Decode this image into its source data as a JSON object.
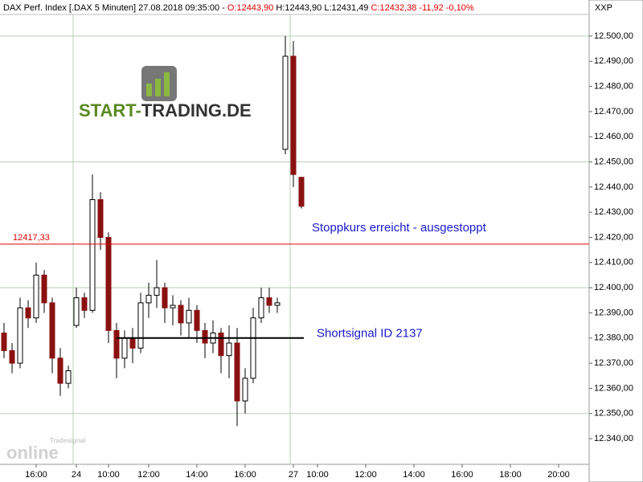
{
  "chart_data": {
    "type": "candlestick",
    "header": {
      "instrument": "DAX Perf. Index [.DAX  5 Minuten] 27.08.2018 09:35:00 -",
      "open": "O:12443,90",
      "high": "H:12443,90",
      "low": "L:12431,49",
      "close": "C:12432,38 -11,92 -0,10%"
    },
    "axis_title": "XXP",
    "logo": {
      "part1": "START-",
      "part2": "TRADING.DE"
    },
    "watermark": {
      "small": "Tradesignal",
      "big": "online"
    },
    "categories": [
      null,
      null,
      null,
      null,
      "16:00",
      null,
      null,
      null,
      null,
      "24",
      null,
      null,
      null,
      "10:00",
      null,
      null,
      null,
      null,
      "12:00",
      null,
      null,
      null,
      null,
      null,
      "14:00",
      null,
      null,
      null,
      null,
      null,
      "16:00",
      null,
      null,
      null,
      null,
      null,
      "27",
      null,
      null,
      "10:00",
      null,
      null,
      null,
      null,
      null,
      "12:00",
      null,
      null,
      null,
      null,
      null,
      "14:00",
      null,
      null,
      null,
      null,
      null,
      "16:00",
      null,
      null,
      null,
      null,
      null,
      "18:00",
      null,
      null,
      null,
      null,
      null,
      "20:00",
      null,
      null,
      null
    ],
    "open": [
      12382,
      12375,
      12370,
      12392,
      12388,
      12405,
      12394,
      12372,
      12362,
      12385,
      12396,
      12391,
      12435,
      12420,
      12383,
      12372,
      12380,
      12376,
      12394,
      12397,
      12400,
      12392,
      12393,
      12386,
      12391,
      12383,
      12378,
      12382,
      12373,
      12378,
      12355,
      12364,
      12388,
      12396,
      12393,
      12455,
      12492,
      12443.9,
      null,
      null,
      null,
      null,
      null,
      null,
      null,
      null,
      null,
      null,
      null,
      null,
      null,
      null,
      null,
      null,
      null,
      null,
      null,
      null,
      null,
      null,
      null,
      null,
      null,
      null,
      null,
      null,
      null,
      null,
      null,
      null,
      null,
      null,
      null
    ],
    "high": [
      12386,
      12378,
      12396,
      12395,
      12410,
      12407,
      12396,
      12376,
      12369,
      12400,
      12398,
      12445,
      12438,
      12422,
      12386,
      12383,
      12384,
      12398,
      12402,
      12411,
      12402,
      12397,
      12395,
      12396,
      12393,
      12386,
      12387,
      12384,
      12385,
      12384,
      12368,
      12392,
      12400,
      12400,
      12396,
      12500,
      12498,
      12443.9,
      null,
      null,
      null,
      null,
      null,
      null,
      null,
      null,
      null,
      null,
      null,
      null,
      null,
      null,
      null,
      null,
      null,
      null,
      null,
      null,
      null,
      null,
      null,
      null,
      null,
      null,
      null,
      null,
      null,
      null,
      null,
      null,
      null,
      null,
      null
    ],
    "low": [
      12372,
      12366,
      12368,
      12384,
      12386,
      12390,
      12366,
      12357,
      12360,
      12384,
      12388,
      12390,
      12415,
      12378,
      12364,
      12368,
      12370,
      12374,
      12388,
      12392,
      12386,
      12385,
      12381,
      12380,
      12378,
      12372,
      12374,
      12366,
      12364,
      12345,
      12350,
      12362,
      12386,
      12390,
      12390,
      12453,
      12440,
      12431.49,
      null,
      null,
      null,
      null,
      null,
      null,
      null,
      null,
      null,
      null,
      null,
      null,
      null,
      null,
      null,
      null,
      null,
      null,
      null,
      null,
      null,
      null,
      null,
      null,
      null,
      null,
      null,
      null,
      null,
      null,
      null,
      null,
      null,
      null,
      null
    ],
    "close": [
      12375,
      12370,
      12392,
      12388,
      12405,
      12394,
      12372,
      12362,
      12367,
      12396,
      12391,
      12435,
      12420,
      12383,
      12372,
      12380,
      12376,
      12394,
      12397,
      12400,
      12392,
      12393,
      12386,
      12391,
      12383,
      12378,
      12382,
      12373,
      12378,
      12355,
      12364,
      12388,
      12396,
      12393,
      12394,
      12492,
      12445,
      12432.38,
      null,
      null,
      null,
      null,
      null,
      null,
      null,
      null,
      null,
      null,
      null,
      null,
      null,
      null,
      null,
      null,
      null,
      null,
      null,
      null,
      null,
      null,
      null,
      null,
      null,
      null,
      null,
      null,
      null,
      null,
      null,
      null,
      null,
      null,
      null
    ],
    "up_color": "#ffffff",
    "down_color": "#8b1010",
    "ylim": [
      12329.8,
      12508.6
    ],
    "yticks": [
      {
        "value": 12340,
        "label": "12.340,00"
      },
      {
        "value": 12350,
        "label": "12.350,00"
      },
      {
        "value": 12360,
        "label": "12.360,00"
      },
      {
        "value": 12370,
        "label": "12.370,00"
      },
      {
        "value": 12380,
        "label": "12.380,00"
      },
      {
        "value": 12390,
        "label": "12.390,00"
      },
      {
        "value": 12400,
        "label": "12.400,00"
      },
      {
        "value": 12410,
        "label": "12.410,00"
      },
      {
        "value": 12420,
        "label": "12.420,00"
      },
      {
        "value": 12430,
        "label": "12.430,00"
      },
      {
        "value": 12440,
        "label": "12.440,00"
      },
      {
        "value": 12450,
        "label": "12.450,00"
      },
      {
        "value": 12460,
        "label": "12.460,00"
      },
      {
        "value": 12470,
        "label": "12.470,00"
      },
      {
        "value": 12480,
        "label": "12.480,00"
      },
      {
        "value": 12490,
        "label": "12.490,00"
      },
      {
        "value": 12500,
        "label": "12.500,00"
      }
    ],
    "stop_line": {
      "value": 12417.33,
      "label": "12417,33",
      "color": "#e00000",
      "text": "Stoppkurs erreicht - ausgestoppt"
    },
    "signal_line": {
      "value": 12380,
      "text": "Shortsignal ID 2137"
    },
    "annotation_color": "#1a1acc"
  }
}
